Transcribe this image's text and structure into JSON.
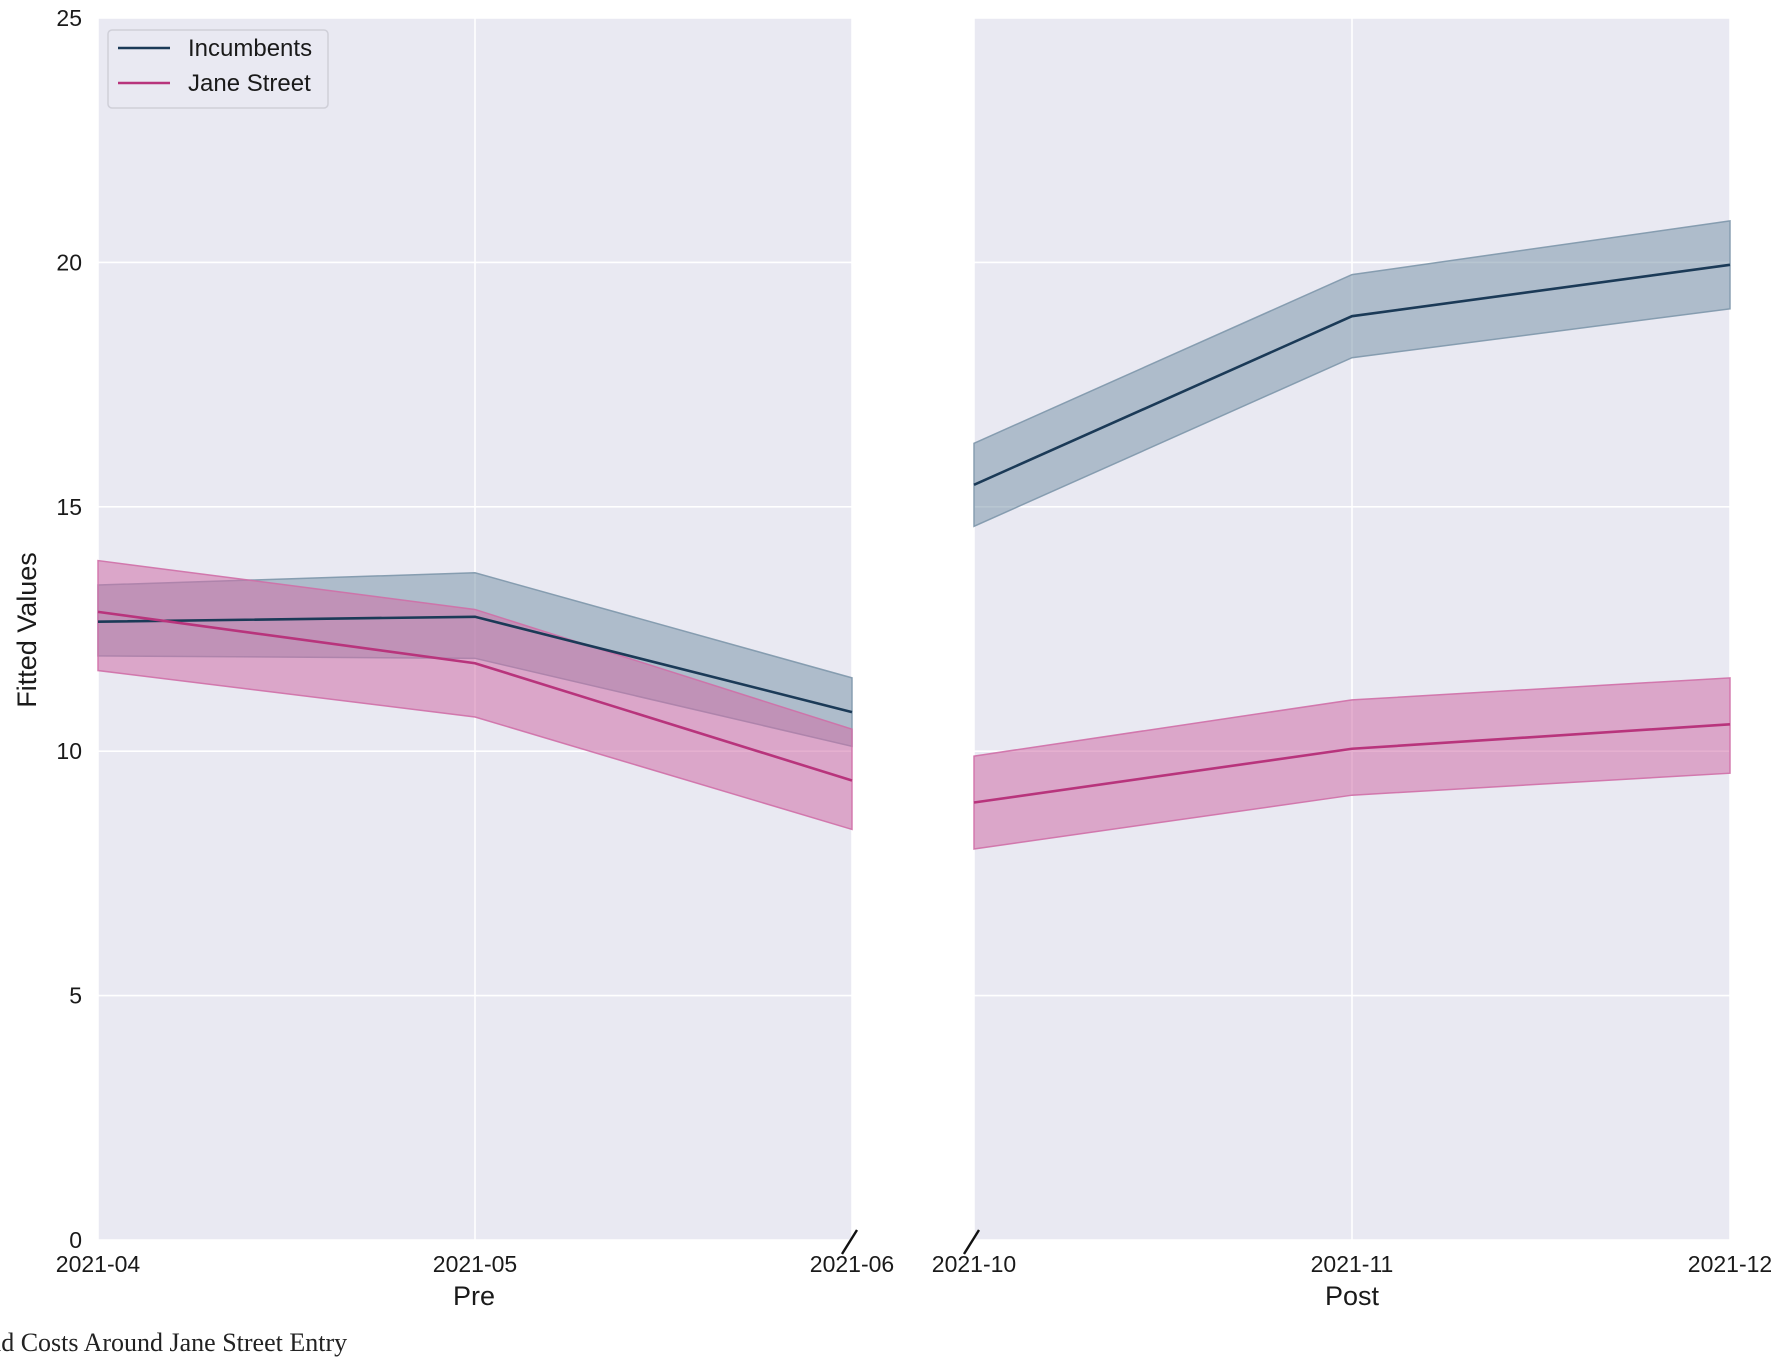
{
  "caption": "Spread Costs Around Jane Street Entry",
  "chart_data": {
    "type": "line",
    "ylabel": "Fitted Values",
    "ylim": [
      0,
      25
    ],
    "yticks": [
      0,
      5,
      10,
      15,
      20,
      25
    ],
    "grid": true,
    "legend": {
      "position": "top-left",
      "entries": [
        "Incumbents",
        "Jane Street"
      ]
    },
    "colors": {
      "Incumbents": "#1b3a57",
      "Jane Street": "#b8347c",
      "Incumbents_band": "#7e97ab",
      "Jane Street_band": "#cf6fa7",
      "panel_background": "#e9e9f2"
    },
    "panels": [
      {
        "xlabel": "Pre",
        "categories": [
          "2021-04",
          "2021-05",
          "2021-06"
        ],
        "series": [
          {
            "name": "Incumbents",
            "values": [
              12.65,
              12.75,
              10.8
            ],
            "lower": [
              11.95,
              11.9,
              10.1
            ],
            "upper": [
              13.4,
              13.65,
              11.5
            ]
          },
          {
            "name": "Jane Street",
            "values": [
              12.85,
              11.8,
              9.4
            ],
            "lower": [
              11.65,
              10.7,
              8.4
            ],
            "upper": [
              13.9,
              12.9,
              10.45
            ]
          }
        ]
      },
      {
        "xlabel": "Post",
        "categories": [
          "2021-10",
          "2021-11",
          "2021-12"
        ],
        "series": [
          {
            "name": "Incumbents",
            "values": [
              15.45,
              18.9,
              19.95
            ],
            "lower": [
              14.6,
              18.05,
              19.05
            ],
            "upper": [
              16.3,
              19.75,
              20.85
            ]
          },
          {
            "name": "Jane Street",
            "values": [
              8.95,
              10.05,
              10.55
            ],
            "lower": [
              8.0,
              9.1,
              9.55
            ],
            "upper": [
              9.9,
              11.05,
              11.5
            ]
          }
        ]
      }
    ]
  }
}
